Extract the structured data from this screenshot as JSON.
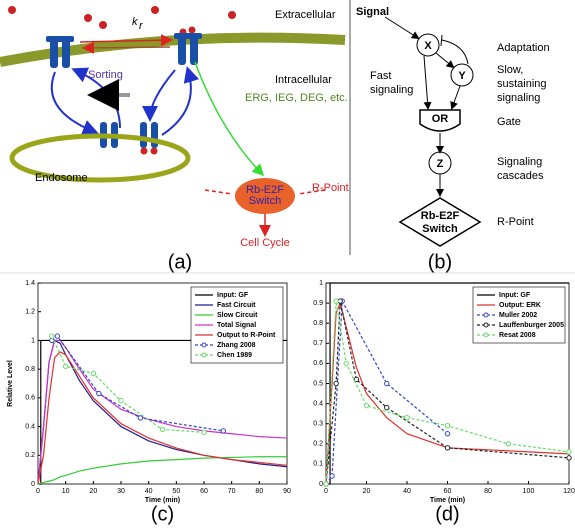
{
  "panel_a": {
    "extracellular": "Extracellular",
    "intracellular": "Intracellular",
    "k": "k",
    "k_sub": "r",
    "sorting": "Sorting",
    "endosome": "Endosome",
    "targets": "ERG, IEG, DEG, etc.",
    "switch_1": "Rb-E2F",
    "switch_2": "Switch",
    "rpoint": "R-Point",
    "cell_cycle": "Cell Cycle",
    "caption": "(a)"
  },
  "panel_b": {
    "signal": "Signal",
    "x": "X",
    "y": "Y",
    "adaptation": "Adaptation",
    "fast_1": "Fast",
    "fast_2": "signaling",
    "slow_1": "Slow,",
    "slow_2": "sustaining",
    "slow_3": "signaling",
    "or": "OR",
    "gate": "Gate",
    "z": "Z",
    "cascades_1": "Signaling",
    "cascades_2": "cascades",
    "switch_1": "Rb-E2F",
    "switch_2": "Switch",
    "rpoint": "R-Point",
    "caption": "(b)"
  },
  "chart_data": [
    {
      "type": "line",
      "caption": "(c)",
      "ylabel": "Relative Level",
      "xlabel": "Time (min)",
      "xlim": [
        0,
        90
      ],
      "ylim": [
        0,
        1.4
      ],
      "xticks": [
        0,
        10,
        20,
        30,
        40,
        50,
        60,
        70,
        80,
        90
      ],
      "yticks": [
        0,
        0.2,
        0.4,
        0.6,
        0.8,
        1,
        1.2,
        1.4
      ],
      "legend": "upper right",
      "series": [
        {
          "name": "Input: GF",
          "color": "#000000",
          "x": [
            0,
            1,
            1,
            90
          ],
          "values": [
            0,
            0,
            1,
            1
          ]
        },
        {
          "name": "Fast Circuit",
          "color": "#1f1f8f",
          "x": [
            0,
            2,
            4,
            6,
            8,
            10,
            15,
            20,
            30,
            40,
            50,
            60,
            70,
            80,
            90
          ],
          "values": [
            0,
            0.4,
            0.85,
            1.0,
            0.98,
            0.9,
            0.72,
            0.58,
            0.4,
            0.3,
            0.24,
            0.2,
            0.17,
            0.14,
            0.12
          ]
        },
        {
          "name": "Slow Circuit",
          "color": "#33cc33",
          "x": [
            0,
            2,
            4,
            6,
            8,
            10,
            15,
            20,
            30,
            40,
            50,
            60,
            70,
            80,
            90
          ],
          "values": [
            0,
            0.01,
            0.02,
            0.03,
            0.05,
            0.06,
            0.09,
            0.11,
            0.14,
            0.16,
            0.17,
            0.18,
            0.185,
            0.19,
            0.19
          ]
        },
        {
          "name": "Total Signal",
          "color": "#cc33cc",
          "x": [
            0,
            2,
            4,
            6,
            8,
            10,
            15,
            20,
            30,
            40,
            50,
            60,
            70,
            80,
            90
          ],
          "values": [
            0,
            0.4,
            0.85,
            1.0,
            1.0,
            0.95,
            0.8,
            0.66,
            0.52,
            0.45,
            0.4,
            0.37,
            0.35,
            0.33,
            0.32
          ]
        },
        {
          "name": "Output to R-Point",
          "color": "#e03030",
          "x": [
            0,
            2,
            4,
            6,
            8,
            10,
            15,
            20,
            30,
            40,
            50,
            60,
            70,
            80,
            90
          ],
          "values": [
            0,
            0.2,
            0.6,
            0.88,
            0.92,
            0.9,
            0.75,
            0.6,
            0.42,
            0.32,
            0.25,
            0.2,
            0.17,
            0.15,
            0.13
          ]
        },
        {
          "name": "Zhang 2008",
          "color": "#3344cc",
          "dashed": true,
          "marker": "circle",
          "x": [
            5,
            7,
            22,
            37,
            67
          ],
          "values": [
            1.0,
            1.03,
            0.63,
            0.46,
            0.37
          ]
        },
        {
          "name": "Chen 1989",
          "color": "#66dd66",
          "dashed": true,
          "marker": "circle",
          "x": [
            5,
            10,
            20,
            30,
            45,
            60
          ],
          "values": [
            1.03,
            0.82,
            0.77,
            0.58,
            0.38,
            0.36
          ]
        }
      ]
    },
    {
      "type": "line",
      "caption": "(d)",
      "xlabel": "Time (min)",
      "xlim": [
        0,
        120
      ],
      "ylim": [
        0,
        1
      ],
      "xticks": [
        0,
        20,
        40,
        60,
        80,
        100,
        120
      ],
      "yticks": [
        0,
        0.1,
        0.2,
        0.3,
        0.4,
        0.5,
        0.6,
        0.7,
        0.8,
        0.9,
        1
      ],
      "legend": "upper right",
      "series": [
        {
          "name": "Input: GF",
          "color": "#000000",
          "x": [
            0,
            2,
            2,
            120
          ],
          "values": [
            0,
            0,
            1,
            1
          ]
        },
        {
          "name": "Output: ERK",
          "color": "#e03030",
          "x": [
            0,
            3,
            5,
            7,
            10,
            15,
            20,
            30,
            40,
            60,
            80,
            100,
            120
          ],
          "values": [
            0,
            0.5,
            0.85,
            0.9,
            0.78,
            0.58,
            0.45,
            0.33,
            0.25,
            0.18,
            0.17,
            0.16,
            0.15
          ]
        },
        {
          "name": "Muller 2002",
          "color": "#3344cc",
          "dashed": true,
          "marker": "circle",
          "x": [
            0,
            3,
            8,
            30,
            60
          ],
          "values": [
            0,
            0.04,
            0.91,
            0.5,
            0.25
          ]
        },
        {
          "name": "Lauffenburger 2005",
          "color": "#222222",
          "dashed": true,
          "marker": "circle",
          "x": [
            0,
            5,
            7,
            15,
            30,
            60,
            120
          ],
          "values": [
            0,
            0.5,
            0.91,
            0.52,
            0.38,
            0.18,
            0.13
          ]
        },
        {
          "name": "Resat 2008",
          "color": "#66dd66",
          "dashed": true,
          "marker": "circle",
          "x": [
            0,
            5,
            10,
            20,
            40,
            60,
            90,
            120
          ],
          "values": [
            0,
            0.91,
            0.6,
            0.39,
            0.33,
            0.29,
            0.2,
            0.16
          ]
        }
      ]
    }
  ]
}
